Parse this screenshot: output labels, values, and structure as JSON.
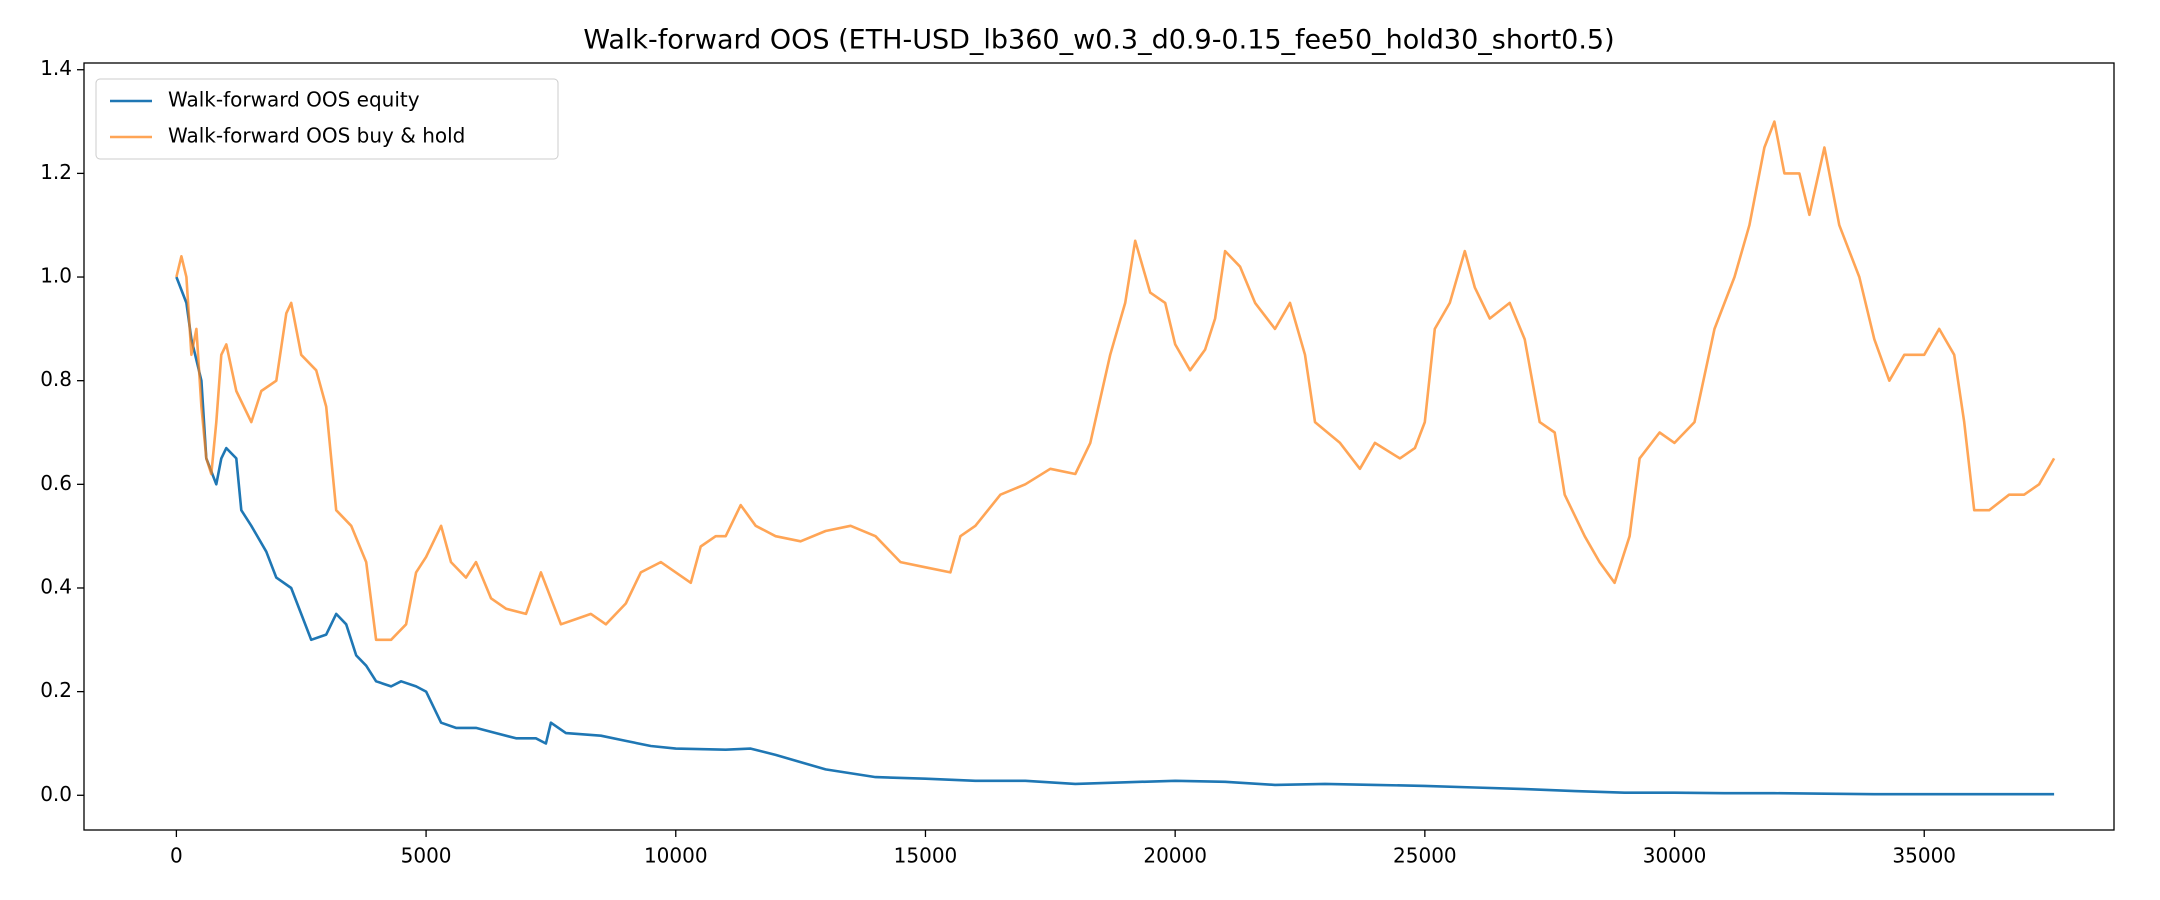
{
  "chart_data": {
    "type": "line",
    "title": "Walk-forward OOS (ETH-USD_lb360_w0.3_d0.9-0.15_fee50_hold30_short0.5)",
    "xlim": [
      -1850,
      38800
    ],
    "ylim": [
      -0.067,
      1.413
    ],
    "xticks": [
      0,
      5000,
      10000,
      15000,
      20000,
      25000,
      30000,
      35000
    ],
    "yticks": [
      {
        "value": 0,
        "label": "0.0"
      },
      0.2,
      0.4,
      0.6,
      0.8,
      {
        "value": 1,
        "label": "1.0"
      },
      1.2,
      1.4
    ],
    "legend": "upper left",
    "grid": false,
    "series": [
      {
        "name": "Walk-forward OOS equity",
        "color": "#1f77b4",
        "alpha": 1,
        "x": [
          0,
          200,
          300,
          500,
          600,
          800,
          900,
          1000,
          1200,
          1300,
          1500,
          1800,
          2000,
          2300,
          2500,
          2700,
          3000,
          3200,
          3400,
          3600,
          3800,
          4000,
          4300,
          4500,
          4800,
          5000,
          5300,
          5600,
          6000,
          6400,
          6800,
          7200,
          7400,
          7500,
          7800,
          8500,
          9000,
          9500,
          10000,
          11000,
          11500,
          12000,
          13000,
          14000,
          15000,
          16000,
          17000,
          18000,
          19000,
          20000,
          21000,
          22000,
          23000,
          24000,
          25000,
          26000,
          27000,
          28000,
          29000,
          30000,
          31000,
          32000,
          33000,
          34000,
          35000,
          36000,
          37000,
          37600
        ],
        "values": [
          1.0,
          0.95,
          0.88,
          0.8,
          0.65,
          0.6,
          0.65,
          0.67,
          0.65,
          0.55,
          0.52,
          0.47,
          0.42,
          0.4,
          0.35,
          0.3,
          0.31,
          0.35,
          0.33,
          0.27,
          0.25,
          0.22,
          0.21,
          0.22,
          0.21,
          0.2,
          0.14,
          0.13,
          0.13,
          0.12,
          0.11,
          0.11,
          0.1,
          0.14,
          0.12,
          0.115,
          0.105,
          0.095,
          0.09,
          0.088,
          0.09,
          0.078,
          0.05,
          0.035,
          0.032,
          0.028,
          0.028,
          0.022,
          0.025,
          0.028,
          0.026,
          0.02,
          0.022,
          0.02,
          0.018,
          0.015,
          0.012,
          0.008,
          0.005,
          0.005,
          0.004,
          0.004,
          0.003,
          0.002,
          0.002,
          0.002,
          0.002,
          0.002
        ]
      },
      {
        "name": "Walk-forward OOS buy & hold",
        "color": "#ff7f0e",
        "alpha": 0.7,
        "x": [
          0,
          100,
          200,
          300,
          400,
          500,
          600,
          700,
          800,
          900,
          1000,
          1200,
          1500,
          1700,
          2000,
          2200,
          2300,
          2500,
          2800,
          3000,
          3200,
          3500,
          3800,
          4000,
          4300,
          4600,
          4800,
          5000,
          5300,
          5500,
          5800,
          6000,
          6300,
          6600,
          7000,
          7300,
          7500,
          7700,
          8000,
          8300,
          8600,
          9000,
          9300,
          9700,
          10000,
          10300,
          10500,
          10800,
          11000,
          11300,
          11600,
          12000,
          12500,
          13000,
          13500,
          14000,
          14500,
          15000,
          15500,
          15700,
          16000,
          16500,
          17000,
          17500,
          18000,
          18300,
          18700,
          19000,
          19200,
          19500,
          19800,
          20000,
          20300,
          20600,
          20800,
          21000,
          21300,
          21600,
          22000,
          22300,
          22600,
          22800,
          23300,
          23700,
          24000,
          24500,
          24800,
          25000,
          25200,
          25500,
          25800,
          26000,
          26300,
          26700,
          27000,
          27300,
          27600,
          27800,
          28200,
          28500,
          28800,
          29100,
          29300,
          29700,
          30000,
          30400,
          30800,
          31200,
          31500,
          31800,
          32000,
          32200,
          32500,
          32700,
          33000,
          33300,
          33700,
          34000,
          34300,
          34600,
          35000,
          35300,
          35600,
          35800,
          36000,
          36300,
          36700,
          37000,
          37300,
          37600
        ],
        "values": [
          1.0,
          1.04,
          1.0,
          0.85,
          0.9,
          0.75,
          0.65,
          0.62,
          0.72,
          0.85,
          0.87,
          0.78,
          0.72,
          0.78,
          0.8,
          0.93,
          0.95,
          0.85,
          0.82,
          0.75,
          0.55,
          0.52,
          0.45,
          0.3,
          0.3,
          0.33,
          0.43,
          0.46,
          0.52,
          0.45,
          0.42,
          0.45,
          0.38,
          0.36,
          0.35,
          0.43,
          0.38,
          0.33,
          0.34,
          0.35,
          0.33,
          0.37,
          0.43,
          0.45,
          0.43,
          0.41,
          0.48,
          0.5,
          0.5,
          0.56,
          0.52,
          0.5,
          0.49,
          0.51,
          0.52,
          0.5,
          0.45,
          0.44,
          0.43,
          0.5,
          0.52,
          0.58,
          0.6,
          0.63,
          0.62,
          0.68,
          0.85,
          0.95,
          1.07,
          0.97,
          0.95,
          0.87,
          0.82,
          0.86,
          0.92,
          1.05,
          1.02,
          0.95,
          0.9,
          0.95,
          0.85,
          0.72,
          0.68,
          0.63,
          0.68,
          0.65,
          0.67,
          0.72,
          0.9,
          0.95,
          1.05,
          0.98,
          0.92,
          0.95,
          0.88,
          0.72,
          0.7,
          0.58,
          0.5,
          0.45,
          0.41,
          0.5,
          0.65,
          0.7,
          0.68,
          0.72,
          0.9,
          1.0,
          1.1,
          1.25,
          1.3,
          1.2,
          1.2,
          1.12,
          1.25,
          1.1,
          1.0,
          0.88,
          0.8,
          0.85,
          0.85,
          0.9,
          0.85,
          0.72,
          0.55,
          0.55,
          0.58,
          0.58,
          0.6,
          0.65
        ]
      }
    ]
  }
}
